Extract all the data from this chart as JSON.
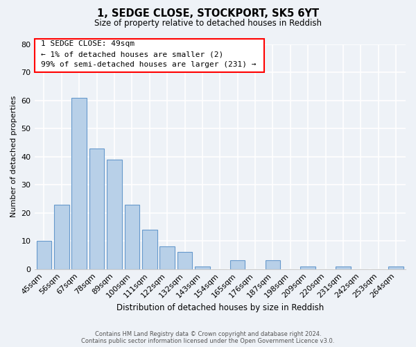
{
  "title": "1, SEDGE CLOSE, STOCKPORT, SK5 6YT",
  "subtitle": "Size of property relative to detached houses in Reddish",
  "xlabel": "Distribution of detached houses by size in Reddish",
  "ylabel": "Number of detached properties",
  "bar_color": "#b8d0e8",
  "bar_edge_color": "#6699cc",
  "background_color": "#eef2f7",
  "categories": [
    "45sqm",
    "56sqm",
    "67sqm",
    "78sqm",
    "89sqm",
    "100sqm",
    "111sqm",
    "122sqm",
    "132sqm",
    "143sqm",
    "154sqm",
    "165sqm",
    "176sqm",
    "187sqm",
    "198sqm",
    "209sqm",
    "220sqm",
    "231sqm",
    "242sqm",
    "253sqm",
    "264sqm"
  ],
  "values": [
    10,
    23,
    61,
    43,
    39,
    23,
    14,
    8,
    6,
    1,
    0,
    3,
    0,
    3,
    0,
    1,
    0,
    1,
    0,
    0,
    1
  ],
  "ylim": [
    0,
    80
  ],
  "ann_line1": "1 SEDGE CLOSE: 49sqm",
  "ann_line2": "← 1% of detached houses are smaller (2)",
  "ann_line3": "99% of semi-detached houses are larger (231) →",
  "footer_line1": "Contains HM Land Registry data © Crown copyright and database right 2024.",
  "footer_line2": "Contains public sector information licensed under the Open Government Licence v3.0."
}
